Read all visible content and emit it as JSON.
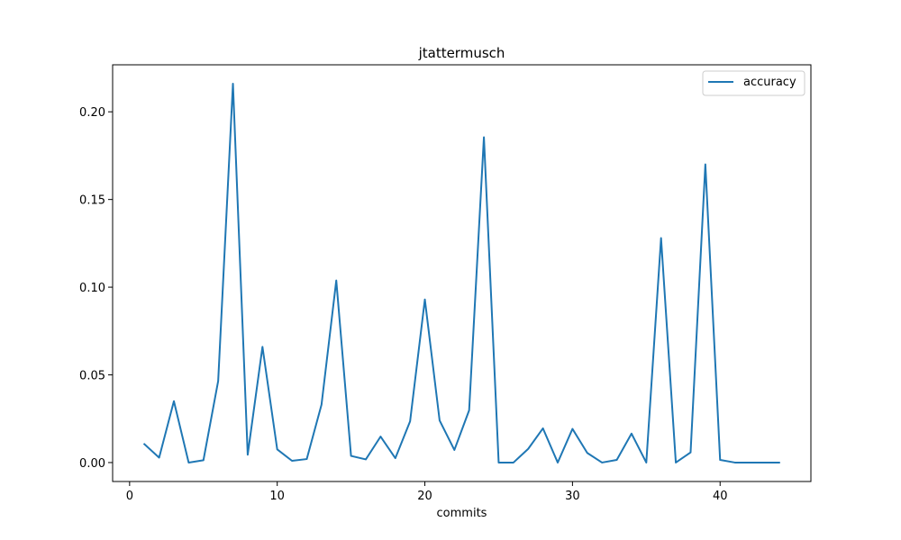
{
  "chart_data": {
    "type": "line",
    "title": "jtattermusch",
    "xlabel": "commits",
    "ylabel": "",
    "xlim": [
      -1.15,
      46.15
    ],
    "ylim": [
      -0.0108,
      0.2268
    ],
    "xticks": [
      0,
      10,
      20,
      30,
      40
    ],
    "yticks": [
      0.0,
      0.05,
      0.1,
      0.15,
      0.2
    ],
    "xtick_labels": [
      "0",
      "10",
      "20",
      "30",
      "40"
    ],
    "ytick_labels": [
      "0.00",
      "0.05",
      "0.10",
      "0.15",
      "0.20"
    ],
    "grid": false,
    "legend_position": "top-right",
    "series": [
      {
        "name": "accuracy",
        "color": "#1f77b4",
        "x": [
          1,
          2,
          3,
          4,
          5,
          6,
          7,
          8,
          9,
          10,
          11,
          12,
          13,
          14,
          15,
          16,
          17,
          18,
          19,
          20,
          21,
          22,
          23,
          24,
          25,
          26,
          27,
          28,
          29,
          30,
          31,
          32,
          33,
          34,
          35,
          36,
          37,
          38,
          39,
          40,
          41,
          42,
          43,
          44
        ],
        "y": [
          0.0105,
          0.0028,
          0.035,
          0.0,
          0.0013,
          0.0465,
          0.216,
          0.0045,
          0.066,
          0.0075,
          0.001,
          0.002,
          0.033,
          0.1038,
          0.0038,
          0.0018,
          0.0148,
          0.0025,
          0.0235,
          0.093,
          0.024,
          0.0072,
          0.0298,
          0.1855,
          0.0,
          0.0,
          0.0078,
          0.0195,
          0.0,
          0.0192,
          0.0055,
          0.0,
          0.0015,
          0.0165,
          0.0,
          0.128,
          0.0,
          0.0058,
          0.17,
          0.0015,
          0.0,
          0.0,
          0.0,
          0.0
        ]
      }
    ]
  }
}
